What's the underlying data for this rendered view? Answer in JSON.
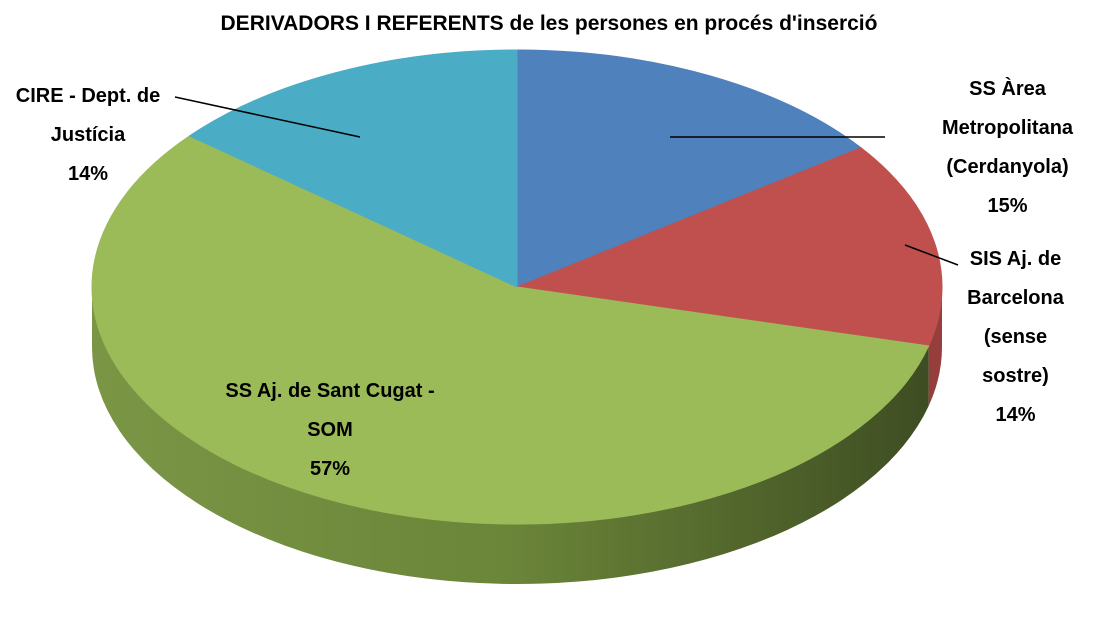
{
  "chart_data": {
    "type": "pie",
    "title": "DERIVADORS I REFERENTS de les persones en procés d'inserció",
    "categories": [
      "SS Àrea Metropolitana (Cerdanyola)",
      "SIS Aj. de Barcelona (sense sostre)",
      "SS Aj. de Sant Cugat - SOM",
      "CIRE - Dept. de Justícia"
    ],
    "values": [
      15,
      14,
      57,
      14
    ],
    "value_labels": [
      "15%",
      "14%",
      "57%",
      "14%"
    ],
    "colors": [
      "#4f81bd",
      "#c0504d",
      "#9bbb59",
      "#4bacc6"
    ]
  }
}
